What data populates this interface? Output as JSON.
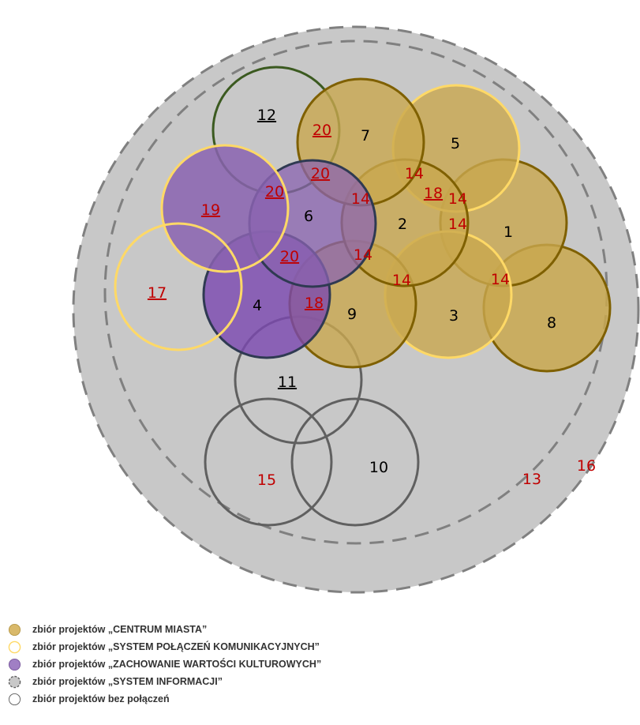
{
  "colors": {
    "outer_fill": "#c8c8c8",
    "boundary_dash": "#808080",
    "centrum_fill": "#c9a84f",
    "centrum_stroke": "#7f6000",
    "system_stroke": "#ffd966",
    "kultur_fill": "#8a63b0",
    "kultur_stroke": "#2f3a52",
    "none_stroke": "#606060",
    "green_stroke": "#3b5a20",
    "red_label": "#c00000",
    "black_label": "#000000"
  },
  "diagram": {
    "sets": [
      {
        "label": "1",
        "group": "centrum"
      },
      {
        "label": "2",
        "group": "centrum"
      },
      {
        "label": "3",
        "group": "centrum"
      },
      {
        "label": "4",
        "group": "kultur"
      },
      {
        "label": "5",
        "group": "centrum"
      },
      {
        "label": "6",
        "group": "kultur"
      },
      {
        "label": "7",
        "group": "centrum"
      },
      {
        "label": "8",
        "group": "centrum"
      },
      {
        "label": "9",
        "group": "centrum"
      },
      {
        "label": "10",
        "group": "none"
      },
      {
        "label": "11",
        "group": "none"
      },
      {
        "label": "12",
        "group": "none"
      },
      {
        "label": "15",
        "group": "none"
      },
      {
        "label": "17",
        "group": "system"
      },
      {
        "label": "19",
        "group": "kultur"
      }
    ],
    "region_labels": [
      "13",
      "16"
    ],
    "connection_labels": [
      "20",
      "20",
      "20",
      "20",
      "14",
      "14",
      "14",
      "14",
      "14",
      "14",
      "14",
      "14",
      "18",
      "18"
    ]
  },
  "legend": [
    {
      "swatch": "centrum",
      "label": "zbiór projektów „CENTRUM MIASTA”"
    },
    {
      "swatch": "system",
      "label": "zbiór projektów „SYSTEM POŁĄCZEŃ KOMUNIKACYJNYCH”"
    },
    {
      "swatch": "kultur",
      "label": "zbiór projektów „ZACHOWANIE WARTOŚCI KULTUROWYCH”"
    },
    {
      "swatch": "info",
      "label": "zbiór projektów „SYSTEM INFORMACJI”"
    },
    {
      "swatch": "none",
      "label": "zbiór projektów bez połączeń"
    }
  ]
}
